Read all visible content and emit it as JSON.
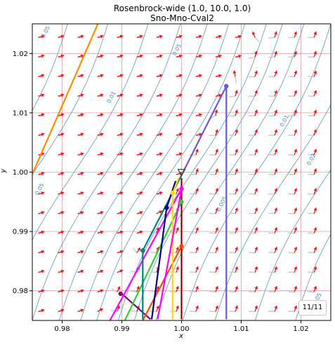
{
  "chart_data": {
    "type": "line",
    "title": "Rosenbrock-wide (1.0, 10.0, 1.0)",
    "subtitle": "Sno-Mno-Cval2",
    "xlabel": "x",
    "ylabel": "y",
    "xlim": [
      0.975,
      1.025
    ],
    "ylim": [
      0.975,
      1.025
    ],
    "x_ticks": [
      "0.98",
      "0.99",
      "1.00",
      "1.01",
      "1.02"
    ],
    "x_tick_values": [
      0.98,
      0.99,
      1.0,
      1.01,
      1.02
    ],
    "y_ticks": [
      "0.98",
      "0.99",
      "1.00",
      "1.01",
      "1.02"
    ],
    "y_tick_values": [
      0.98,
      0.99,
      1.0,
      1.01,
      1.02
    ],
    "grid": true,
    "counter": "11/11",
    "minimum": {
      "x": 1.0,
      "y": 1.0
    },
    "contour_labels": [
      {
        "text": "0.05",
        "x": 0.9775,
        "y": 1.0235,
        "angle": -62
      },
      {
        "text": "0.05",
        "x": 0.9995,
        "y": 1.0205,
        "angle": -62
      },
      {
        "text": "0.01",
        "x": 0.9885,
        "y": 1.0125,
        "angle": -62
      },
      {
        "text": "0.01",
        "x": 1.0175,
        "y": 1.0085,
        "angle": -62
      },
      {
        "text": "0.02",
        "x": 1.022,
        "y": 1.002,
        "angle": -62
      },
      {
        "text": "0.005",
        "x": 1.007,
        "y": 0.9945,
        "angle": -62
      },
      {
        "text": "0.05",
        "x": 0.9765,
        "y": 0.997,
        "angle": -62
      },
      {
        "text": "0.05",
        "x": 1.023,
        "y": 0.9785,
        "angle": -62
      }
    ],
    "series": [
      {
        "color": "#ff8c00",
        "x": [
          0.9745,
          0.9862
        ],
        "y": [
          0.9985,
          1.0255
        ]
      },
      {
        "color": "#6a5acd",
        "x": [
          1.0075,
          1.0075,
          1.0
        ],
        "y": [
          0.9752,
          1.0145,
          0.9995
        ]
      },
      {
        "color": "#800080",
        "x": [
          0.9948,
          0.99,
          0.9898
        ],
        "y": [
          0.9752,
          0.9795,
          0.9795
        ]
      },
      {
        "color": "#ff00ff",
        "x": [
          0.988,
          1.0
        ],
        "y": [
          0.975,
          0.9972
        ]
      },
      {
        "color": "#32cd32",
        "x": [
          0.9905,
          1.0
        ],
        "y": [
          0.975,
          0.995
        ]
      },
      {
        "color": "#ff4500",
        "x": [
          0.9935,
          1.0
        ],
        "y": [
          0.975,
          0.9875
        ]
      },
      {
        "color": "#008080",
        "x": [
          0.9935,
          0.9935,
          1.0
        ],
        "y": [
          0.9752,
          0.9868,
          0.9995
        ]
      },
      {
        "color": "#000080",
        "x": [
          0.995,
          0.9975,
          0.999
        ],
        "y": [
          0.9752,
          0.994,
          0.9985
        ]
      },
      {
        "color": "#ffd700",
        "x": [
          0.9985,
          0.9985,
          0.9995
        ],
        "y": [
          0.9752,
          0.9965,
          0.999
        ]
      },
      {
        "color": "#8b0000",
        "x": [
          1.0,
          1.0
        ],
        "y": [
          0.9752,
          0.999
        ]
      },
      {
        "color": "#ff00ff",
        "x": [
          0.996,
          1.0
        ],
        "y": [
          0.9752,
          0.9972
        ]
      }
    ],
    "markers": [
      {
        "color": "#6a5acd",
        "x": 1.0075,
        "y": 1.0145
      },
      {
        "color": "#800080",
        "x": 0.9898,
        "y": 0.9795
      },
      {
        "color": "#ff00ff",
        "x": 1.0,
        "y": 0.9972
      },
      {
        "color": "#32cd32",
        "x": 1.0,
        "y": 0.995
      },
      {
        "color": "#ff4500",
        "x": 1.0,
        "y": 0.9875
      },
      {
        "color": "#008080",
        "x": 0.9935,
        "y": 0.9868
      },
      {
        "color": "#000080",
        "x": 0.9975,
        "y": 0.994
      },
      {
        "color": "#ffd700",
        "x": 0.9985,
        "y": 0.9965
      }
    ]
  }
}
